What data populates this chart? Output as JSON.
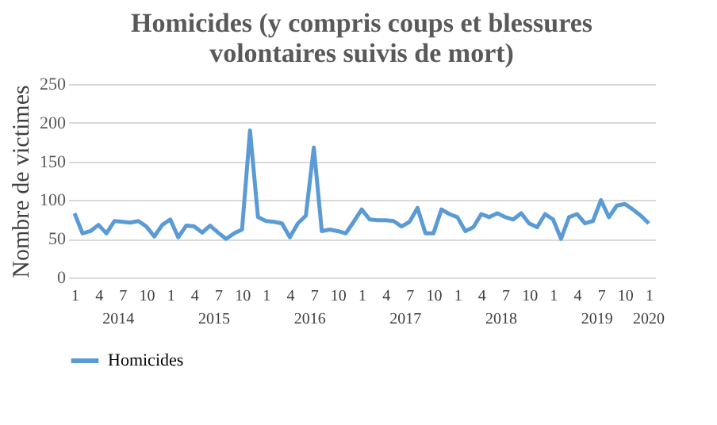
{
  "chart_data": {
    "type": "line",
    "title": [
      "Homicides (y compris coups et blessures",
      "volontaires suivis  de mort)"
    ],
    "ylabel": "Nombre de victimes",
    "categories": [
      "1",
      null,
      null,
      "4",
      null,
      null,
      "7",
      null,
      null,
      "10",
      null,
      null,
      "1",
      null,
      null,
      "4",
      null,
      null,
      "7",
      null,
      null,
      "10",
      null,
      null,
      "1",
      null,
      null,
      "4",
      null,
      null,
      "7",
      null,
      null,
      "10",
      null,
      null,
      "1",
      null,
      null,
      "4",
      null,
      null,
      "7",
      null,
      null,
      "10",
      null,
      null,
      "1",
      null,
      null,
      "4",
      null,
      null,
      "7",
      null,
      null,
      "10",
      null,
      null,
      "1",
      null,
      null,
      "4",
      null,
      null,
      "7",
      null,
      null,
      "10",
      null,
      null,
      "1"
    ],
    "annotations": [
      "2014",
      "2015",
      "2016",
      "2017",
      "2018",
      "2019",
      "2020"
    ],
    "series": [
      {
        "name": "Homicides",
        "color": "#5b9bd5",
        "values": [
          83,
          57,
          60,
          68,
          57,
          73,
          72,
          71,
          73,
          66,
          53,
          68,
          75,
          52,
          67,
          66,
          58,
          67,
          58,
          50,
          57,
          62,
          190,
          78,
          73,
          72,
          70,
          52,
          70,
          80,
          168,
          60,
          62,
          60,
          57,
          72,
          88,
          75,
          74,
          74,
          73,
          66,
          72,
          90,
          57,
          57,
          88,
          82,
          78,
          60,
          65,
          82,
          78,
          83,
          78,
          75,
          83,
          70,
          65,
          82,
          75,
          50,
          78,
          82,
          70,
          73,
          100,
          78,
          93,
          95,
          88,
          80,
          70
        ]
      }
    ],
    "ylim": [
      0,
      250
    ],
    "yticks": [
      0,
      50,
      100,
      150,
      200,
      250
    ],
    "grid": "y",
    "legend": "bottom",
    "marker": "none",
    "line_style": "solid"
  }
}
